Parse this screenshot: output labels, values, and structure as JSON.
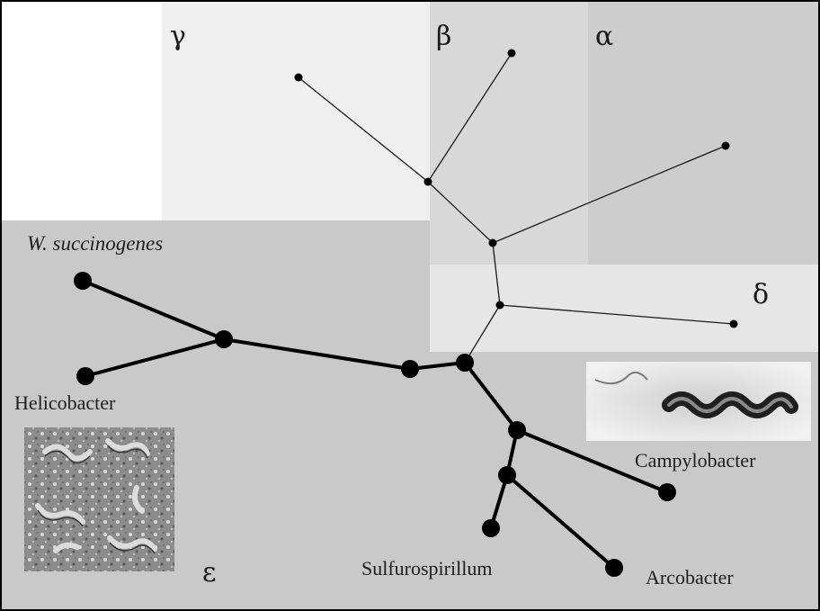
{
  "diagram": {
    "type": "unrooted phylogenetic tree",
    "groups": {
      "gamma": "γ",
      "beta": "β",
      "alpha": "α",
      "delta": "δ",
      "epsilon": "ε"
    },
    "taxa": {
      "wolinella": "W. succinogenes",
      "helicobacter": "Helicobacter",
      "campylobacter": "Campylobacter",
      "sulfurospirillum": "Sulfurospirillum",
      "arcobacter": "Arcobacter"
    }
  },
  "colors": {
    "panel_background": "#c9c9c9",
    "gamma_region": "#efefef",
    "beta_region": "#d8d8d8",
    "alpha_region": "#cdcdcd",
    "delta_region": "#e6e6e6",
    "branch": "#000000"
  }
}
